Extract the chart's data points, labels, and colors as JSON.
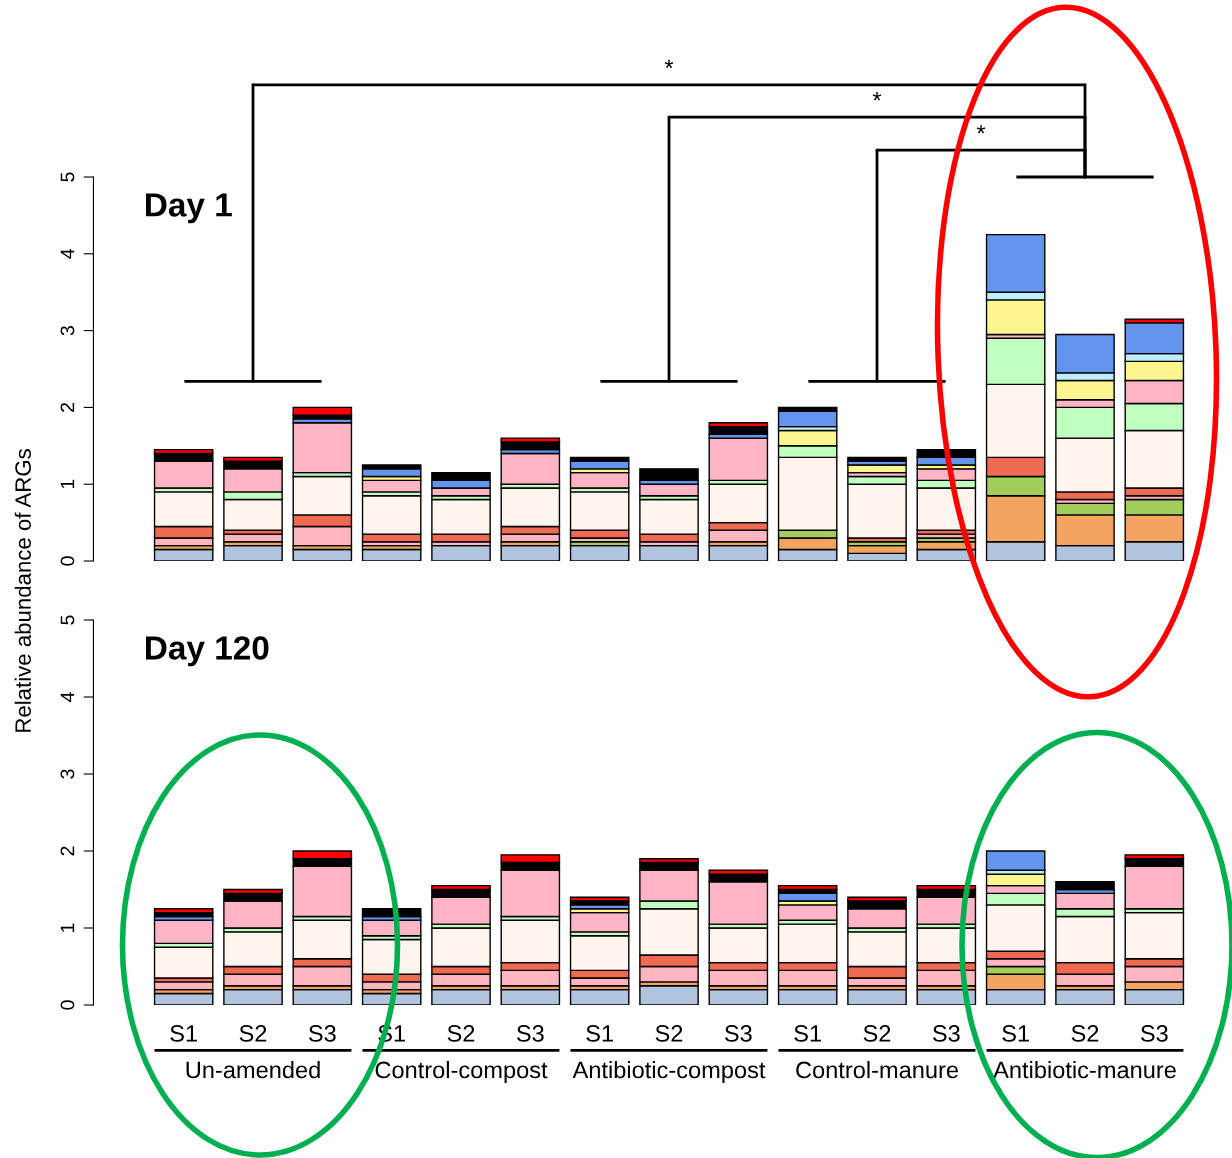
{
  "chart_data": [
    {
      "type": "bar",
      "title": "Day 1",
      "ylabel": "Relative abundance of ARGs",
      "stacked": true,
      "tick_labels": "y",
      "grid": false,
      "legend": false,
      "categories": [
        null,
        null,
        null,
        null,
        null,
        null,
        null,
        null,
        null,
        null,
        null,
        null,
        null,
        null,
        null
      ],
      "ylim": [
        0,
        5
      ],
      "yticks": [
        0,
        1,
        2,
        3,
        4,
        5
      ],
      "annotations": [
        "*",
        "*",
        "*"
      ],
      "series": [
        {
          "color": "#b0c4de",
          "values": [
            0.15,
            0.2,
            0.15,
            0.15,
            0.2,
            0.2,
            0.2,
            0.2,
            0.2,
            0.15,
            0.1,
            0.15,
            0.25,
            0.2,
            0.25
          ]
        },
        {
          "color": "#f4a460",
          "values": [
            0.05,
            0.05,
            0.05,
            0.05,
            null,
            0.05,
            null,
            null,
            0.05,
            0.15,
            0.1,
            0.1,
            0.6,
            0.4,
            0.35
          ]
        },
        {
          "color": "#a2cd5a",
          "values": [
            null,
            null,
            null,
            null,
            null,
            null,
            0.05,
            null,
            null,
            0.1,
            0.05,
            0.05,
            0.25,
            0.15,
            0.2
          ]
        },
        {
          "color": "#ffb6c1",
          "values": [
            0.1,
            0.1,
            0.25,
            0.05,
            0.05,
            0.1,
            0.05,
            0.05,
            0.15,
            null,
            null,
            0.05,
            null,
            0.05,
            0.05
          ]
        },
        {
          "color": "#ee6a50",
          "values": [
            0.15,
            0.05,
            0.15,
            0.1,
            0.1,
            0.1,
            0.1,
            0.1,
            0.1,
            null,
            0.05,
            0.05,
            0.25,
            0.1,
            0.1
          ]
        },
        {
          "color": "#fff5ee",
          "values": [
            0.45,
            0.4,
            0.5,
            0.5,
            0.45,
            0.5,
            0.5,
            0.45,
            0.5,
            0.95,
            0.7,
            0.55,
            0.95,
            0.7,
            0.75
          ]
        },
        {
          "color": "#c1ffc1",
          "values": [
            0.05,
            0.1,
            0.05,
            0.05,
            0.05,
            0.05,
            0.05,
            0.05,
            0.05,
            0.15,
            0.1,
            0.1,
            0.6,
            0.4,
            0.35
          ]
        },
        {
          "color": "#ffb5c5",
          "values": [
            0.35,
            0.3,
            0.65,
            0.15,
            0.1,
            0.4,
            0.2,
            0.15,
            0.55,
            null,
            0.05,
            0.15,
            0.05,
            0.1,
            0.3
          ]
        },
        {
          "color": "#fff68f",
          "values": [
            null,
            null,
            null,
            0.05,
            null,
            null,
            0.05,
            null,
            null,
            0.2,
            0.1,
            0.05,
            0.45,
            0.25,
            0.25
          ]
        },
        {
          "color": "#bfefff",
          "values": [
            null,
            null,
            null,
            null,
            null,
            null,
            null,
            null,
            null,
            0.05,
            null,
            null,
            0.1,
            0.1,
            0.1
          ]
        },
        {
          "color": "#6495ed",
          "values": [
            null,
            null,
            0.05,
            0.1,
            0.1,
            0.05,
            0.1,
            0.05,
            0.05,
            0.2,
            0.05,
            0.1,
            0.75,
            0.5,
            0.4
          ]
        },
        {
          "color": "#000000",
          "values": [
            0.1,
            0.1,
            0.05,
            0.05,
            0.1,
            0.1,
            0.05,
            0.15,
            0.1,
            0.05,
            0.05,
            0.1,
            null,
            null,
            null
          ]
        },
        {
          "color": "#ff0000",
          "values": [
            0.05,
            0.05,
            0.1,
            null,
            null,
            0.05,
            null,
            null,
            0.05,
            null,
            null,
            null,
            null,
            null,
            0.05
          ]
        }
      ]
    },
    {
      "type": "bar",
      "title": "Day 120",
      "stacked": true,
      "grid": false,
      "legend": false,
      "categories": [
        "S1",
        "S2",
        "S3",
        "S1",
        "S2",
        "S3",
        "S1",
        "S2",
        "S3",
        "S1",
        "S2",
        "S3",
        "S1",
        "S2",
        "S3"
      ],
      "ylim": [
        0,
        5
      ],
      "yticks": [
        0,
        1,
        2,
        3,
        4,
        5
      ],
      "annotations": [
        "Un-amended",
        "Control-compost",
        "Antibiotic-compost",
        "Control-manure",
        "Antibiotic-manure"
      ],
      "series": [
        {
          "color": "#b0c4de",
          "values": [
            0.15,
            0.2,
            0.2,
            0.15,
            0.2,
            0.2,
            0.2,
            0.25,
            0.2,
            0.2,
            0.2,
            0.2,
            0.2,
            0.2,
            0.2
          ]
        },
        {
          "color": "#f4a460",
          "values": [
            0.05,
            0.05,
            0.05,
            0.05,
            0.05,
            0.05,
            0.05,
            0.05,
            0.05,
            0.05,
            0.05,
            0.05,
            0.2,
            0.05,
            0.1
          ]
        },
        {
          "color": "#a2cd5a",
          "values": [
            null,
            null,
            null,
            null,
            null,
            null,
            null,
            null,
            null,
            null,
            null,
            null,
            0.1,
            null,
            null
          ]
        },
        {
          "color": "#ffb6c1",
          "values": [
            0.1,
            0.15,
            0.25,
            0.1,
            0.15,
            0.2,
            0.1,
            0.2,
            0.2,
            0.2,
            0.1,
            0.2,
            0.1,
            0.15,
            0.2
          ]
        },
        {
          "color": "#ee6a50",
          "values": [
            0.05,
            0.1,
            0.1,
            0.1,
            0.1,
            0.1,
            0.1,
            0.15,
            0.1,
            0.1,
            0.15,
            0.1,
            0.1,
            0.15,
            0.1
          ]
        },
        {
          "color": "#fff5ee",
          "values": [
            0.4,
            0.45,
            0.5,
            0.45,
            0.5,
            0.55,
            0.45,
            0.6,
            0.45,
            0.5,
            0.45,
            0.45,
            0.6,
            0.6,
            0.6
          ]
        },
        {
          "color": "#c1ffc1",
          "values": [
            0.05,
            0.05,
            0.05,
            0.05,
            0.05,
            0.05,
            0.05,
            0.1,
            0.05,
            0.05,
            0.05,
            0.05,
            0.15,
            0.1,
            0.05
          ]
        },
        {
          "color": "#ffb5c5",
          "values": [
            0.3,
            0.35,
            0.65,
            0.2,
            0.35,
            0.6,
            0.25,
            0.4,
            0.55,
            0.2,
            0.25,
            0.35,
            0.1,
            0.2,
            0.55
          ]
        },
        {
          "color": "#fff68f",
          "values": [
            null,
            null,
            null,
            null,
            null,
            null,
            0.05,
            null,
            null,
            0.05,
            null,
            null,
            0.15,
            null,
            null
          ]
        },
        {
          "color": "#bfefff",
          "values": [
            null,
            null,
            null,
            null,
            null,
            null,
            null,
            null,
            null,
            null,
            null,
            null,
            0.05,
            null,
            null
          ]
        },
        {
          "color": "#6495ed",
          "values": [
            0.05,
            null,
            null,
            0.05,
            null,
            null,
            0.05,
            null,
            null,
            0.1,
            null,
            null,
            0.25,
            0.05,
            null
          ]
        },
        {
          "color": "#000000",
          "values": [
            0.05,
            0.1,
            0.1,
            0.1,
            0.1,
            0.1,
            0.05,
            0.1,
            0.1,
            0.05,
            0.1,
            0.1,
            null,
            0.1,
            0.1
          ]
        },
        {
          "color": "#ff0000",
          "values": [
            0.05,
            0.05,
            0.1,
            null,
            0.05,
            0.1,
            0.05,
            0.05,
            0.05,
            0.05,
            0.05,
            0.05,
            null,
            null,
            0.05
          ]
        }
      ]
    }
  ]
}
